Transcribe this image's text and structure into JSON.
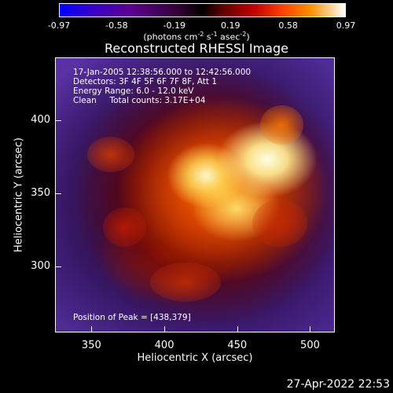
{
  "chart_data": {
    "type": "heatmap",
    "title": "Reconstructed RHESSI Image",
    "colorbar": {
      "ticks": [
        "-0.97",
        "-0.58",
        "-0.19",
        "0.19",
        "0.58",
        "0.97"
      ],
      "range": [
        -0.97,
        0.97
      ],
      "units": "(photons cm-2 s-1 asec-2)"
    },
    "annotations": [
      "17-Jan-2005 12:38:56.000 to 12:42:56.000",
      "Detectors: 3F 4F 5F 6F 7F 8F, Att 1",
      "Energy Range: 6.0 - 12.0 keV",
      "Clean     Total counts: 3.17E+04"
    ],
    "peak_label": "Position of Peak = [438,379]",
    "peak": [
      438,
      379
    ],
    "xlabel": "Heliocentric X (arcsec)",
    "ylabel": "Heliocentric Y (arcsec)",
    "xlim": [
      325,
      517
    ],
    "ylim": [
      255,
      443
    ],
    "xticks": [
      "350",
      "400",
      "450",
      "500"
    ],
    "yticks": [
      "300",
      "350",
      "400"
    ],
    "grid": false
  },
  "footer": {
    "timestamp": "27-Apr-2022 22:53"
  }
}
